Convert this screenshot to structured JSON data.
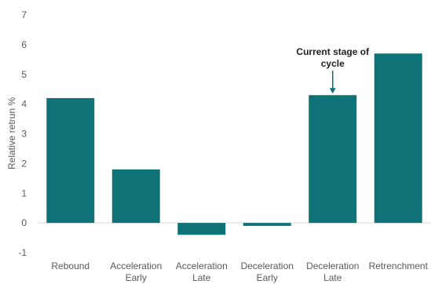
{
  "chart_data": {
    "type": "bar",
    "title": "",
    "xlabel": "",
    "ylabel": "Relative retrun %",
    "ylim": [
      -1,
      7
    ],
    "yticks": [
      -1,
      0,
      1,
      2,
      3,
      4,
      5,
      6,
      7
    ],
    "grid": false,
    "bar_color": "#0e7277",
    "categories": [
      [
        "Rebound"
      ],
      [
        "Acceleration",
        "Early"
      ],
      [
        "Acceleration",
        "Late"
      ],
      [
        "Deceleration",
        "Early"
      ],
      [
        "Deceleration",
        "Late"
      ],
      [
        "Retrenchment"
      ]
    ],
    "values": [
      4.2,
      1.8,
      -0.4,
      -0.1,
      4.3,
      5.7
    ],
    "annotation": {
      "lines": [
        "Current stage of",
        "cycle"
      ],
      "category_index": 4
    }
  }
}
